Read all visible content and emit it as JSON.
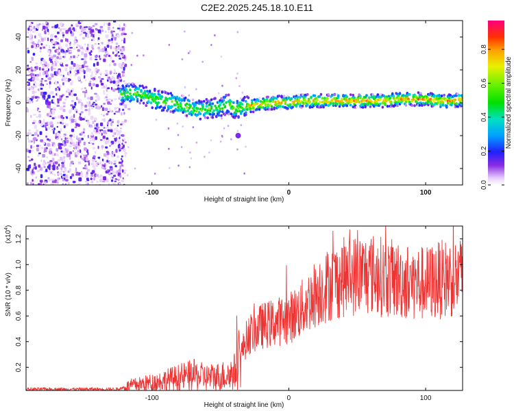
{
  "title": "C2E2.2025.245.18.10.E11",
  "chart_data": [
    {
      "type": "heatmap",
      "name": "spectrogram",
      "xlabel": "Height of straight line (km)",
      "ylabel": "Frequency (Hz)",
      "xlim": [
        -192,
        127
      ],
      "ylim": [
        -50,
        50
      ],
      "x_ticks": [
        -100,
        0,
        100
      ],
      "y_ticks": [
        -40,
        -20,
        0,
        20,
        40
      ],
      "colorbar": {
        "label": "Normalized spectral amplitude",
        "range": [
          0,
          0.97
        ],
        "ticks": [
          0.0,
          0.2,
          0.4,
          0.6,
          0.8
        ]
      },
      "ridge": {
        "height_km": [
          -122,
          -115,
          -105,
          -95,
          -85,
          -75,
          -68,
          -60,
          -52,
          -45,
          -40,
          -35,
          -30,
          -20,
          -10,
          0,
          10,
          20,
          30,
          40,
          50,
          60,
          70,
          80,
          90,
          100,
          110,
          120,
          127
        ],
        "frequency_hz": [
          6,
          7,
          5,
          2,
          1,
          -2,
          -4,
          -3,
          -2,
          0,
          -3,
          -2,
          -1,
          0,
          1,
          1,
          2,
          2,
          2,
          2,
          2,
          2,
          2,
          3,
          3,
          3,
          2,
          2,
          3
        ]
      }
    },
    {
      "type": "line",
      "name": "snr",
      "xlabel": "Height of straight line (km)",
      "ylabel": "SNR (10 * v/v)",
      "scale_label": "(x10",
      "scale_exponent": "4",
      "xlim": [
        -192,
        127
      ],
      "ylim": [
        0.02,
        1.3
      ],
      "x_ticks": [
        -100,
        0,
        100
      ],
      "y_ticks": [
        0.2,
        0.4,
        0.6,
        0.8,
        1.0,
        1.2
      ],
      "color": "#ee3333",
      "envelope": {
        "height_km": [
          -192,
          -125,
          -115,
          -100,
          -90,
          -80,
          -70,
          -60,
          -50,
          -45,
          -40,
          -35,
          -30,
          -25,
          -20,
          -10,
          0,
          10,
          20,
          30,
          40,
          50,
          60,
          70,
          80,
          90,
          100,
          110,
          120,
          127
        ],
        "snr": [
          0.03,
          0.03,
          0.06,
          0.08,
          0.1,
          0.12,
          0.14,
          0.12,
          0.13,
          0.14,
          0.16,
          0.3,
          0.45,
          0.48,
          0.52,
          0.55,
          0.58,
          0.66,
          0.78,
          0.85,
          0.9,
          0.92,
          0.93,
          0.9,
          0.88,
          0.86,
          0.85,
          0.88,
          0.9,
          0.9
        ]
      }
    }
  ]
}
